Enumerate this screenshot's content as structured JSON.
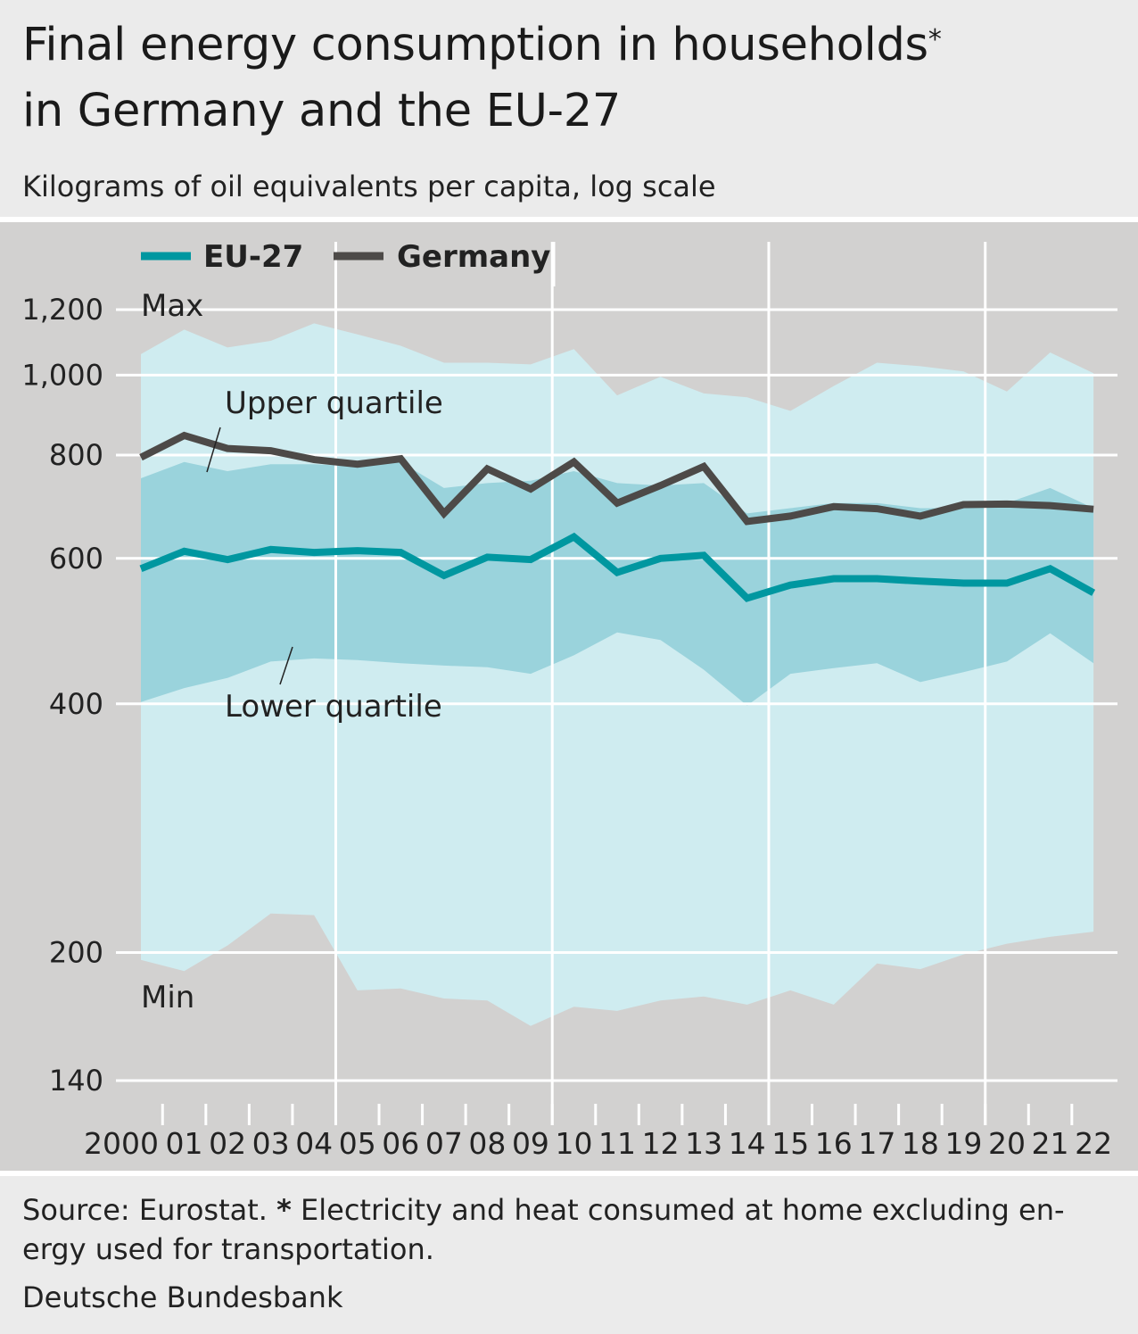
{
  "header": {
    "title_line1": "Final energy consumption in households",
    "title_asterisk": "*",
    "title_line2": "in Germany and the EU-27",
    "subtitle": "Kilograms of oil equivalents per capita, log scale"
  },
  "footer": {
    "source_prefix": "Source: Eurostat. ",
    "note_marker": "*",
    "note_text": " Electricity and heat consumed at home excluding en-ergy used for transportation.",
    "organization": "Deutsche Bundesbank"
  },
  "colors": {
    "eu27": "#0097a0",
    "germany": "#4d4a48",
    "range_band": "#cfecf0",
    "quartile_band": "#9ad3dc",
    "plot_background": "#d2d1d0"
  },
  "chart_data": {
    "type": "area",
    "scale": "log",
    "ylim": [
      140,
      1300
    ],
    "y_ticks": [
      1200,
      1000,
      800,
      600,
      400,
      200,
      140
    ],
    "y_tick_labels": [
      "1,200",
      "1,000",
      "800",
      "600",
      "400",
      "200",
      "140"
    ],
    "x": [
      2000,
      2001,
      2002,
      2003,
      2004,
      2005,
      2006,
      2007,
      2008,
      2009,
      2010,
      2011,
      2012,
      2013,
      2014,
      2015,
      2016,
      2017,
      2018,
      2019,
      2020,
      2021,
      2022
    ],
    "x_tick_labels": [
      "2000",
      "01",
      "02",
      "03",
      "04",
      "05",
      "06",
      "07",
      "08",
      "09",
      "10",
      "11",
      "12",
      "13",
      "14",
      "15",
      "16",
      "17",
      "18",
      "19",
      "20",
      "21",
      "22"
    ],
    "legend": {
      "position": "top-left"
    },
    "series": [
      {
        "name": "EU-27",
        "values": [
          583,
          612,
          598,
          615,
          610,
          613,
          610,
          572,
          602,
          598,
          637,
          577,
          600,
          605,
          537,
          557,
          567,
          567,
          563,
          560,
          560,
          583,
          545
        ]
      },
      {
        "name": "Germany",
        "values": [
          795,
          845,
          815,
          810,
          790,
          780,
          792,
          680,
          770,
          728,
          785,
          700,
          735,
          775,
          665,
          675,
          693,
          689,
          675,
          697,
          698,
          695,
          688
        ]
      }
    ],
    "bands": [
      {
        "label_top": "Max",
        "label_bottom": "Min",
        "upper": [
          1060,
          1135,
          1080,
          1100,
          1155,
          1120,
          1085,
          1035,
          1035,
          1030,
          1075,
          945,
          995,
          950,
          940,
          905,
          970,
          1035,
          1025,
          1010,
          955,
          1065,
          1005
        ],
        "lower": [
          196,
          190,
          204,
          223,
          222,
          180,
          181,
          176,
          175,
          163,
          172,
          170,
          175,
          177,
          173,
          180,
          173,
          194,
          191,
          199,
          205,
          209,
          212
        ]
      },
      {
        "label_top": "Upper quartile",
        "label_bottom": "Lower quartile",
        "upper": [
          750,
          785,
          765,
          780,
          780,
          775,
          785,
          730,
          740,
          745,
          765,
          740,
          735,
          740,
          680,
          690,
          700,
          700,
          690,
          690,
          700,
          730,
          690
        ],
        "lower": [
          402,
          418,
          430,
          450,
          454,
          452,
          448,
          445,
          443,
          435,
          458,
          488,
          478,
          440,
          398,
          435,
          442,
          448,
          425,
          437,
          450,
          487,
          448
        ]
      }
    ]
  }
}
